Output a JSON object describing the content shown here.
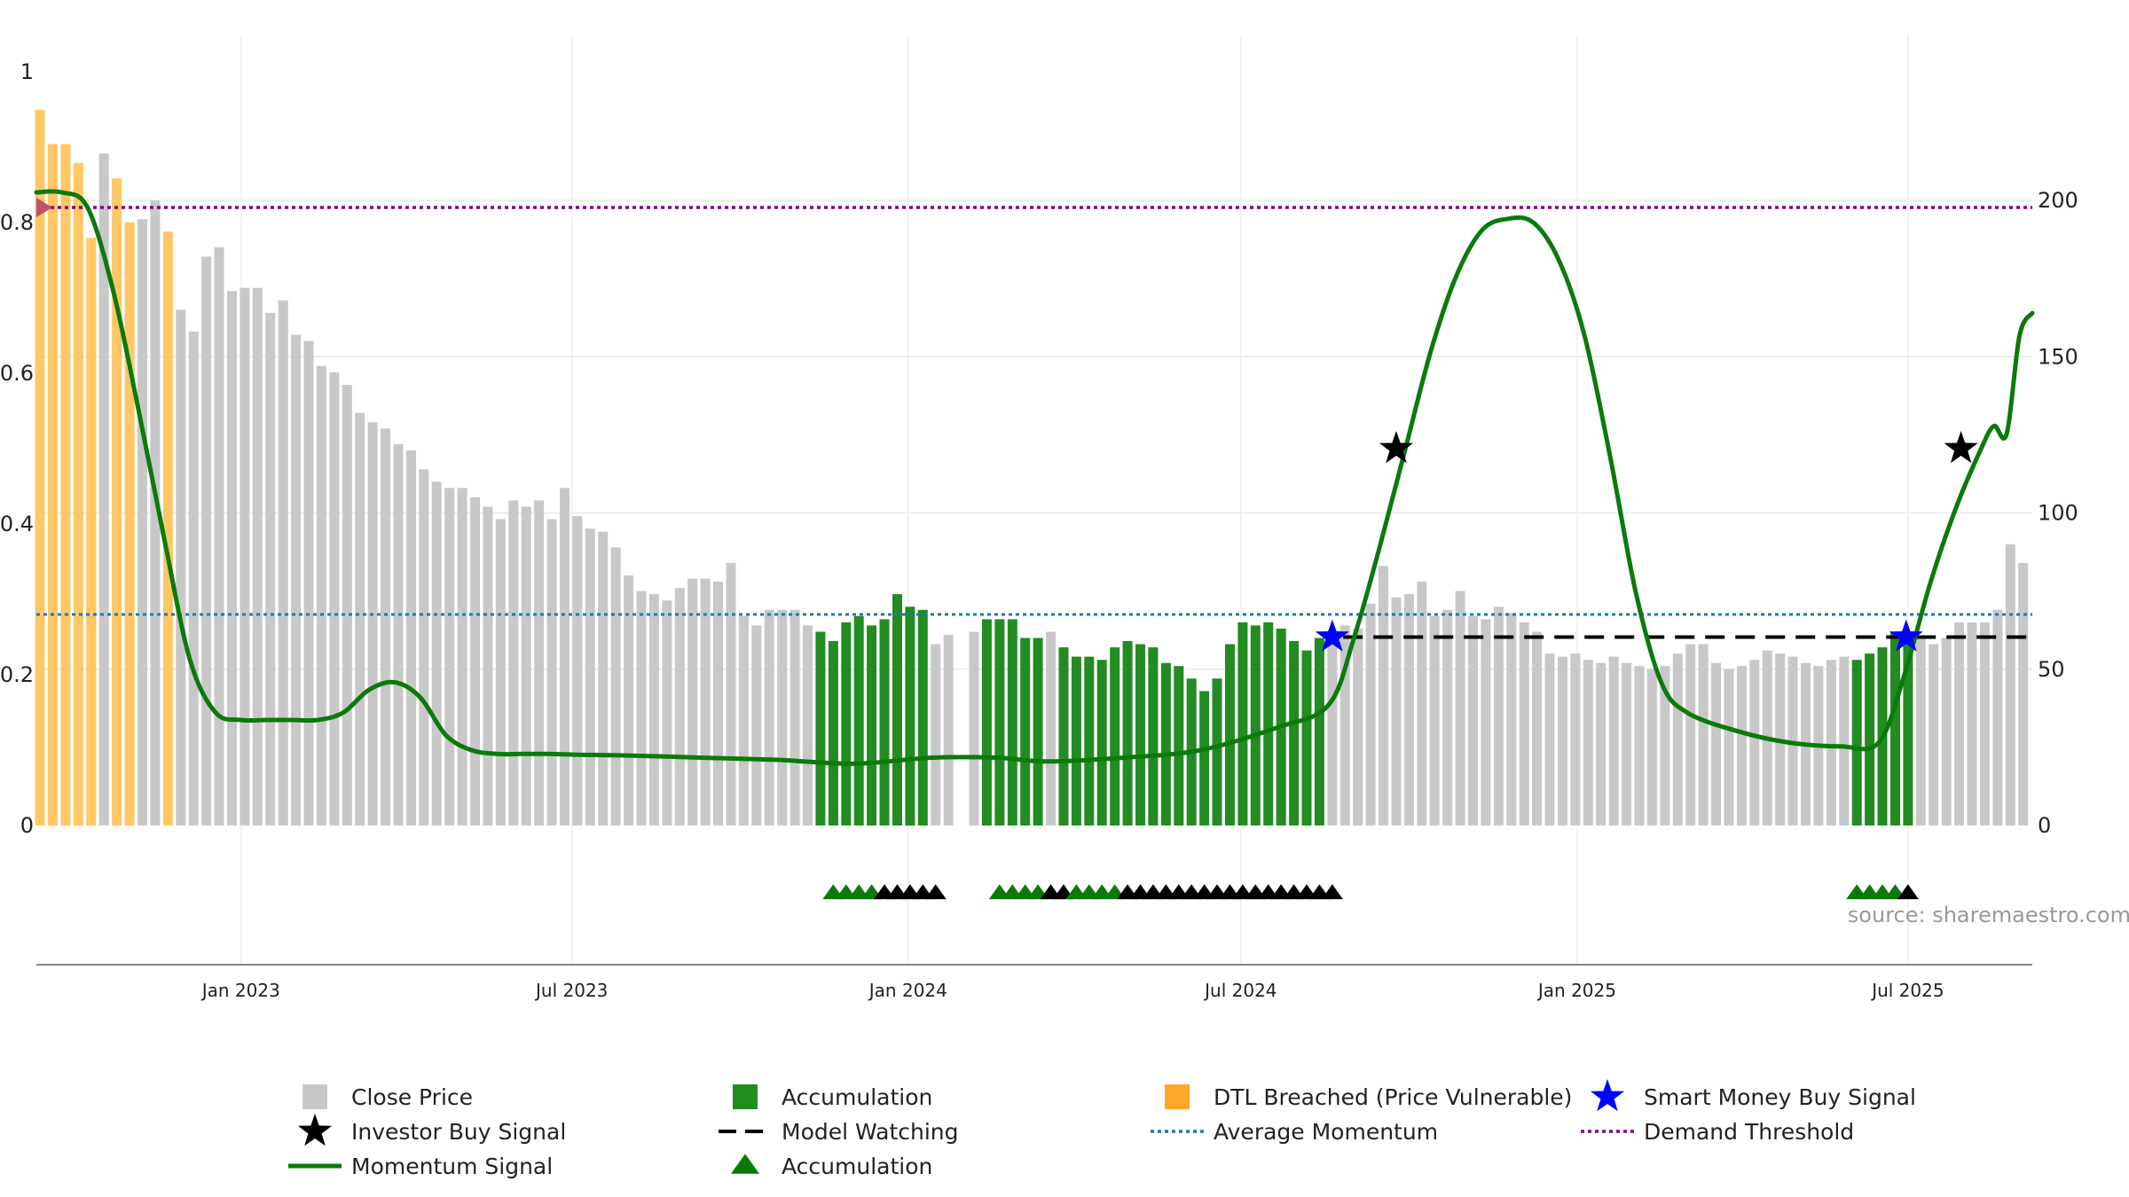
{
  "chart_data": {
    "type": "bar",
    "source_text": "source: sharemaestro.com",
    "left_axis": {
      "ylim": [
        0,
        1
      ],
      "ticks": [
        0,
        0.2,
        0.4,
        0.6,
        0.8,
        1
      ],
      "tick_labels": [
        "0",
        "0.2",
        "0.4",
        "0.6",
        "0.8",
        "1"
      ]
    },
    "right_axis": {
      "ylim": [
        0,
        240
      ],
      "ticks": [
        0,
        50,
        100,
        150,
        200
      ],
      "tick_labels": [
        "0",
        "50",
        "100",
        "150",
        "200"
      ]
    },
    "x_axis": {
      "start": "2022-09-11",
      "end": "2025-09-07",
      "ticks": [
        "2023-01-01",
        "2023-07-01",
        "2024-01-01",
        "2024-07-01",
        "2025-01-01",
        "2025-07-01"
      ],
      "tick_labels": [
        "Jan 2023",
        "Jul 2023",
        "Jan 2024",
        "Jul 2024",
        "Jan 2025",
        "Jul 2025"
      ]
    },
    "colors": {
      "close_price": "#c8c8c8",
      "accumulation": "#228b22",
      "dtl_breached": "#ffc766",
      "momentum": "#0a7a0a",
      "avg_momentum": "#1f77b4",
      "demand_threshold": "#800080",
      "smart_money": "#0000ff",
      "investor_buy": "#000000"
    },
    "series": [
      {
        "name": "Close Price",
        "axis": "right",
        "x": [
          "2022-09-13",
          "2022-09-20",
          "2022-09-27",
          "2022-10-04",
          "2022-10-11",
          "2022-10-18",
          "2022-10-25",
          "2022-11-01",
          "2022-11-08",
          "2022-11-15",
          "2022-11-22",
          "2022-11-29",
          "2022-12-06",
          "2022-12-13",
          "2022-12-20",
          "2022-12-27",
          "2023-01-03",
          "2023-01-10",
          "2023-01-17",
          "2023-01-24",
          "2023-01-31",
          "2023-02-07",
          "2023-02-14",
          "2023-02-21",
          "2023-02-28",
          "2023-03-07",
          "2023-03-14",
          "2023-03-21",
          "2023-03-28",
          "2023-04-04",
          "2023-04-11",
          "2023-04-18",
          "2023-04-25",
          "2023-05-02",
          "2023-05-09",
          "2023-05-16",
          "2023-05-23",
          "2023-05-30",
          "2023-06-06",
          "2023-06-13",
          "2023-06-20",
          "2023-06-27",
          "2023-07-04",
          "2023-07-11",
          "2023-07-18",
          "2023-07-25",
          "2023-08-01",
          "2023-08-08",
          "2023-08-15",
          "2023-08-22",
          "2023-08-29",
          "2023-09-05",
          "2023-09-12",
          "2023-09-19",
          "2023-09-26",
          "2023-10-03",
          "2023-10-10",
          "2023-10-17",
          "2023-10-24",
          "2023-10-31",
          "2023-11-07",
          "2023-11-14",
          "2023-11-21",
          "2023-11-28",
          "2023-12-05",
          "2023-12-12",
          "2023-12-19",
          "2023-12-26",
          "2024-01-02",
          "2024-01-09",
          "2024-01-16",
          "2024-01-23",
          "2024-01-30",
          "2024-02-06",
          "2024-02-13",
          "2024-02-20",
          "2024-02-27",
          "2024-03-05",
          "2024-03-12",
          "2024-03-19",
          "2024-03-26",
          "2024-04-02",
          "2024-04-09",
          "2024-04-16",
          "2024-04-23",
          "2024-04-30",
          "2024-05-07",
          "2024-05-14",
          "2024-05-21",
          "2024-05-28",
          "2024-06-04",
          "2024-06-11",
          "2024-06-18",
          "2024-06-25",
          "2024-07-02",
          "2024-07-09",
          "2024-07-16",
          "2024-07-23",
          "2024-07-30",
          "2024-08-06",
          "2024-08-13",
          "2024-08-20",
          "2024-08-27",
          "2024-09-03",
          "2024-09-10",
          "2024-09-17",
          "2024-09-24",
          "2024-10-01",
          "2024-10-08",
          "2024-10-15",
          "2024-10-22",
          "2024-10-29",
          "2024-11-05",
          "2024-11-12",
          "2024-11-19",
          "2024-11-26",
          "2024-12-03",
          "2024-12-10",
          "2024-12-17",
          "2024-12-24",
          "2024-12-31",
          "2025-01-07",
          "2025-01-14",
          "2025-01-21",
          "2025-01-28",
          "2025-02-04",
          "2025-02-11",
          "2025-02-18",
          "2025-02-25",
          "2025-03-04",
          "2025-03-11",
          "2025-03-18",
          "2025-03-25",
          "2025-04-01",
          "2025-04-08",
          "2025-04-15",
          "2025-04-22",
          "2025-04-29",
          "2025-05-06",
          "2025-05-13",
          "2025-05-20",
          "2025-05-27",
          "2025-06-03",
          "2025-06-10",
          "2025-06-17",
          "2025-06-24",
          "2025-07-01",
          "2025-07-08",
          "2025-07-15",
          "2025-07-22",
          "2025-07-29",
          "2025-08-05",
          "2025-08-12",
          "2025-08-19",
          "2025-08-26",
          "2025-09-02"
        ],
        "values": [
          229,
          218,
          218,
          212,
          188,
          215,
          207,
          193,
          194,
          200,
          190,
          165,
          158,
          182,
          185,
          171,
          172,
          172,
          164,
          168,
          157,
          155,
          147,
          145,
          141,
          132,
          129,
          127,
          122,
          120,
          114,
          110,
          108,
          108,
          105,
          102,
          98,
          104,
          102,
          104,
          98,
          108,
          99,
          95,
          94,
          89,
          80,
          75,
          74,
          72,
          76,
          79,
          79,
          78,
          84,
          67,
          64,
          69,
          69,
          69,
          64,
          62,
          59,
          65,
          67,
          64,
          66,
          74,
          70,
          69,
          58,
          61,
          0,
          62,
          66,
          66,
          66,
          60,
          60,
          62,
          57,
          54,
          54,
          53,
          57,
          59,
          58,
          57,
          52,
          51,
          47,
          43,
          47,
          58,
          65,
          64,
          65,
          63,
          59,
          56,
          60,
          62,
          64,
          63,
          71,
          83,
          73,
          74,
          78,
          67,
          69,
          75,
          67,
          66,
          70,
          68,
          65,
          62,
          55,
          54,
          55,
          53,
          52,
          54,
          52,
          51,
          50,
          51,
          55,
          58,
          58,
          52,
          50,
          51,
          53,
          56,
          55,
          54,
          52,
          51,
          53,
          54,
          53,
          55,
          57,
          62,
          60,
          60,
          58,
          60,
          65,
          65,
          65,
          69,
          90,
          84
        ],
        "category": [
          "dtl",
          "dtl",
          "dtl",
          "dtl",
          "dtl",
          "price",
          "dtl",
          "dtl",
          "price",
          "price",
          "dtl",
          "price",
          "price",
          "price",
          "price",
          "price",
          "price",
          "price",
          "price",
          "price",
          "price",
          "price",
          "price",
          "price",
          "price",
          "price",
          "price",
          "price",
          "price",
          "price",
          "price",
          "price",
          "price",
          "price",
          "price",
          "price",
          "price",
          "price",
          "price",
          "price",
          "price",
          "price",
          "price",
          "price",
          "price",
          "price",
          "price",
          "price",
          "price",
          "price",
          "price",
          "price",
          "price",
          "price",
          "price",
          "price",
          "price",
          "price",
          "price",
          "price",
          "price",
          "acc",
          "acc",
          "acc",
          "acc",
          "acc",
          "acc",
          "acc",
          "acc",
          "acc",
          "price",
          "price",
          "price",
          "price",
          "acc",
          "acc",
          "acc",
          "acc",
          "acc",
          "price",
          "acc",
          "acc",
          "acc",
          "acc",
          "acc",
          "acc",
          "acc",
          "acc",
          "acc",
          "acc",
          "acc",
          "acc",
          "acc",
          "acc",
          "acc",
          "acc",
          "acc",
          "acc",
          "acc",
          "acc",
          "acc",
          "price",
          "price",
          "price",
          "price",
          "price",
          "price",
          "price",
          "price",
          "price",
          "price",
          "price",
          "price",
          "price",
          "price",
          "price",
          "price",
          "price",
          "price",
          "price",
          "price",
          "price",
          "price",
          "price",
          "price",
          "price",
          "price",
          "price",
          "price",
          "price",
          "price",
          "price",
          "price",
          "price",
          "price",
          "price",
          "price",
          "price",
          "price",
          "price",
          "price",
          "price",
          "acc",
          "acc",
          "acc",
          "acc",
          "acc",
          "price",
          "price",
          "price",
          "price",
          "price",
          "price",
          "price",
          "price",
          "price",
          "price",
          "price"
        ]
      },
      {
        "name": "Momentum Signal",
        "axis": "left",
        "x": [
          "2022-09-11",
          "2022-09-25",
          "2022-10-09",
          "2022-10-23",
          "2022-11-06",
          "2022-11-20",
          "2022-12-04",
          "2022-12-18",
          "2023-01-01",
          "2023-01-15",
          "2023-01-29",
          "2023-02-12",
          "2023-02-26",
          "2023-03-12",
          "2023-03-26",
          "2023-04-09",
          "2023-04-23",
          "2023-05-07",
          "2023-05-21",
          "2023-06-04",
          "2023-06-18",
          "2023-07-02",
          "2023-07-30",
          "2023-09-10",
          "2023-10-22",
          "2023-12-03",
          "2024-01-14",
          "2024-02-18",
          "2024-03-17",
          "2024-04-28",
          "2024-06-09",
          "2024-07-21",
          "2024-08-18",
          "2024-09-01",
          "2024-09-15",
          "2024-09-29",
          "2024-10-13",
          "2024-10-27",
          "2024-11-10",
          "2024-11-24",
          "2024-12-08",
          "2024-12-22",
          "2025-01-05",
          "2025-01-19",
          "2025-02-02",
          "2025-02-16",
          "2025-03-02",
          "2025-03-30",
          "2025-04-27",
          "2025-05-25",
          "2025-06-15",
          "2025-06-29",
          "2025-07-13",
          "2025-07-27",
          "2025-08-10",
          "2025-08-17",
          "2025-08-24",
          "2025-08-31",
          "2025-09-07"
        ],
        "values": [
          0.84,
          0.84,
          0.82,
          0.71,
          0.55,
          0.38,
          0.22,
          0.15,
          0.14,
          0.14,
          0.14,
          0.14,
          0.15,
          0.18,
          0.19,
          0.17,
          0.12,
          0.1,
          0.095,
          0.095,
          0.095,
          0.094,
          0.093,
          0.09,
          0.087,
          0.082,
          0.09,
          0.09,
          0.085,
          0.09,
          0.1,
          0.13,
          0.16,
          0.25,
          0.37,
          0.5,
          0.63,
          0.73,
          0.79,
          0.805,
          0.8,
          0.75,
          0.65,
          0.49,
          0.31,
          0.19,
          0.15,
          0.125,
          0.11,
          0.105,
          0.11,
          0.2,
          0.32,
          0.42,
          0.5,
          0.53,
          0.52,
          0.65,
          0.68
        ]
      },
      {
        "name": "Average Momentum",
        "axis": "left",
        "value": 0.28
      },
      {
        "name": "Demand Threshold",
        "axis": "left",
        "value": 0.82
      },
      {
        "name": "Model Watching",
        "axis": "left",
        "segments": [
          {
            "x": [
              "2024-08-26",
              "2025-09-07"
            ],
            "value": 0.25
          }
        ]
      },
      {
        "name": "Smart Money Buy Signal",
        "axis": "left",
        "points": [
          {
            "x": "2024-08-20",
            "y": 0.25
          },
          {
            "x": "2025-06-30",
            "y": 0.25
          }
        ]
      },
      {
        "name": "Investor Buy Signal",
        "axis": "left",
        "points": [
          {
            "x": "2024-09-24",
            "y": 0.5
          },
          {
            "x": "2025-07-30",
            "y": 0.5
          }
        ]
      },
      {
        "name": "Accumulation",
        "marker": "triangle",
        "y": -0.09,
        "points": [
          {
            "x": "2023-11-21",
            "c": "green"
          },
          {
            "x": "2023-11-28",
            "c": "green"
          },
          {
            "x": "2023-12-05",
            "c": "green"
          },
          {
            "x": "2023-12-12",
            "c": "green"
          },
          {
            "x": "2023-12-19",
            "c": "black"
          },
          {
            "x": "2023-12-26",
            "c": "black"
          },
          {
            "x": "2024-01-02",
            "c": "black"
          },
          {
            "x": "2024-01-09",
            "c": "black"
          },
          {
            "x": "2024-01-16",
            "c": "black"
          },
          {
            "x": "2024-02-20",
            "c": "green"
          },
          {
            "x": "2024-02-27",
            "c": "green"
          },
          {
            "x": "2024-03-05",
            "c": "green"
          },
          {
            "x": "2024-03-12",
            "c": "green"
          },
          {
            "x": "2024-03-19",
            "c": "black"
          },
          {
            "x": "2024-03-26",
            "c": "black"
          },
          {
            "x": "2024-04-02",
            "c": "green"
          },
          {
            "x": "2024-04-09",
            "c": "green"
          },
          {
            "x": "2024-04-16",
            "c": "green"
          },
          {
            "x": "2024-04-23",
            "c": "green"
          },
          {
            "x": "2024-04-30",
            "c": "black"
          },
          {
            "x": "2024-05-07",
            "c": "black"
          },
          {
            "x": "2024-05-14",
            "c": "black"
          },
          {
            "x": "2024-05-21",
            "c": "black"
          },
          {
            "x": "2024-05-28",
            "c": "black"
          },
          {
            "x": "2024-06-04",
            "c": "black"
          },
          {
            "x": "2024-06-11",
            "c": "black"
          },
          {
            "x": "2024-06-18",
            "c": "black"
          },
          {
            "x": "2024-06-25",
            "c": "black"
          },
          {
            "x": "2024-07-02",
            "c": "black"
          },
          {
            "x": "2024-07-09",
            "c": "black"
          },
          {
            "x": "2024-07-16",
            "c": "black"
          },
          {
            "x": "2024-07-23",
            "c": "black"
          },
          {
            "x": "2024-07-30",
            "c": "black"
          },
          {
            "x": "2024-08-06",
            "c": "black"
          },
          {
            "x": "2024-08-13",
            "c": "black"
          },
          {
            "x": "2024-08-20",
            "c": "black"
          },
          {
            "x": "2025-06-03",
            "c": "green"
          },
          {
            "x": "2025-06-10",
            "c": "green"
          },
          {
            "x": "2025-06-17",
            "c": "green"
          },
          {
            "x": "2025-06-24",
            "c": "green"
          },
          {
            "x": "2025-07-01",
            "c": "black"
          }
        ]
      }
    ],
    "legend_position": "bottom",
    "legend": [
      {
        "label": "Close Price",
        "symbol": "square",
        "color": "#c8c8c8"
      },
      {
        "label": "Accumulation",
        "symbol": "square",
        "color": "#228b22"
      },
      {
        "label": "DTL Breached (Price Vulnerable)",
        "symbol": "square",
        "color": "#ffa726"
      },
      {
        "label": "Smart Money Buy Signal",
        "symbol": "star",
        "color": "#0000ff"
      },
      {
        "label": "Investor Buy Signal",
        "symbol": "star",
        "color": "#000000"
      },
      {
        "label": "Model Watching",
        "symbol": "dash",
        "color": "#000000"
      },
      {
        "label": "Average Momentum",
        "symbol": "dot",
        "color": "#1f77b4"
      },
      {
        "label": "Demand Threshold",
        "symbol": "dot",
        "color": "#800080"
      },
      {
        "label": "Momentum Signal",
        "symbol": "line",
        "color": "#0a7a0a"
      },
      {
        "label": "Accumulation",
        "symbol": "triangle",
        "color": "#0a7a0a"
      }
    ]
  }
}
